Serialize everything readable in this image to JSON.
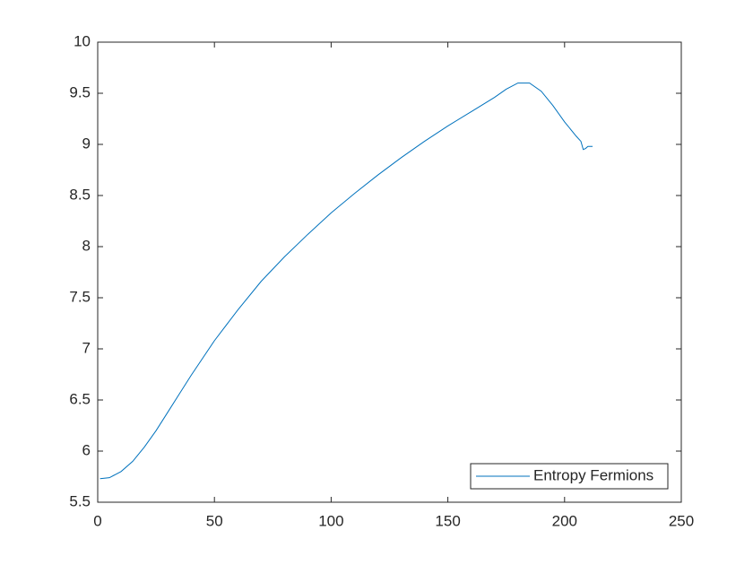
{
  "chart_data": {
    "type": "line",
    "x": [
      1,
      5,
      10,
      15,
      20,
      25,
      30,
      35,
      40,
      50,
      60,
      70,
      80,
      90,
      100,
      110,
      120,
      130,
      140,
      150,
      160,
      170,
      175,
      180,
      185,
      190,
      195,
      200,
      205,
      207,
      208,
      209,
      210,
      212
    ],
    "series": [
      {
        "name": "Entropy Fermions",
        "color": "#0072bd",
        "values": [
          5.73,
          5.74,
          5.8,
          5.9,
          6.04,
          6.2,
          6.38,
          6.56,
          6.74,
          7.08,
          7.38,
          7.66,
          7.9,
          8.12,
          8.33,
          8.52,
          8.7,
          8.87,
          9.03,
          9.18,
          9.32,
          9.46,
          9.54,
          9.6,
          9.6,
          9.52,
          9.38,
          9.22,
          9.08,
          9.03,
          8.95,
          8.96,
          8.98,
          8.98
        ]
      }
    ],
    "xlim": [
      0,
      250
    ],
    "xticks": [
      0,
      50,
      100,
      150,
      200,
      250
    ],
    "ylim": [
      5.5,
      10
    ],
    "yticks": [
      5.5,
      6,
      6.5,
      7,
      7.5,
      8,
      8.5,
      9,
      9.5,
      10
    ],
    "grid": false,
    "legend": "southeast"
  }
}
